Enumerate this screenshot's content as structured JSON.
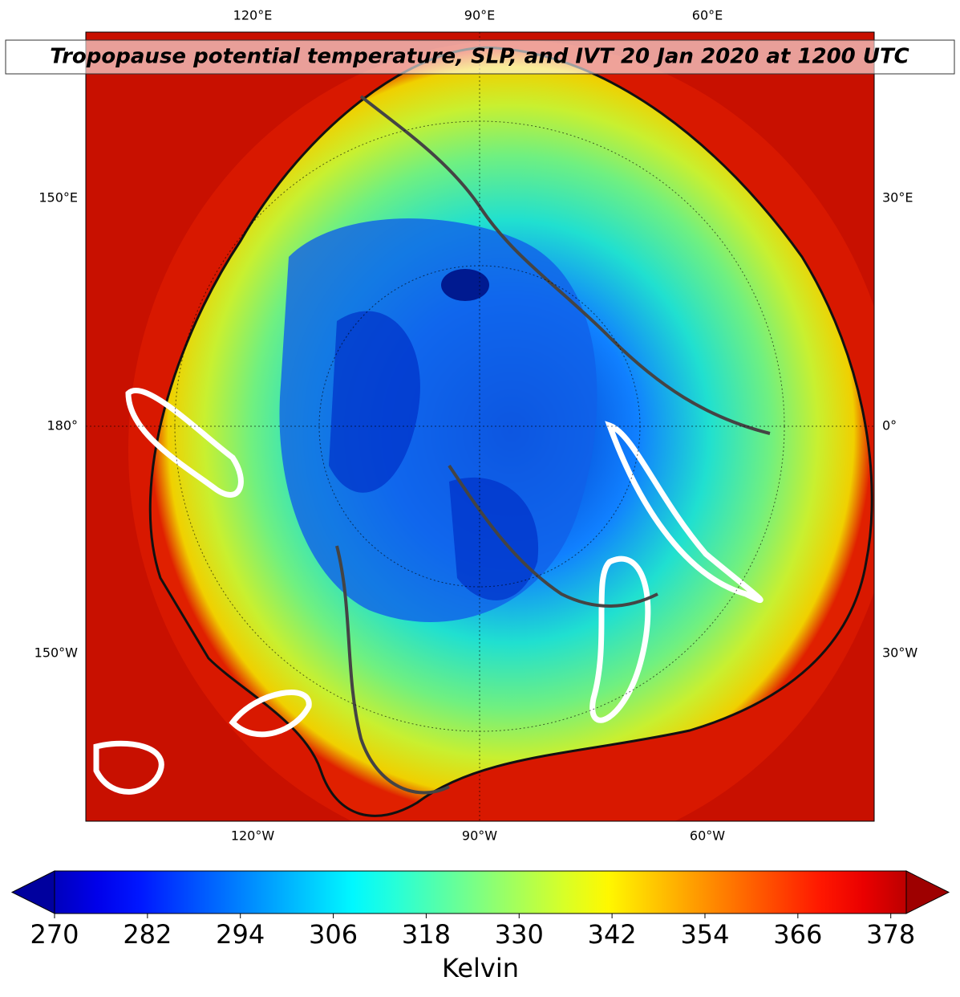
{
  "title": "Tropopause potential temperature, SLP, and IVT 20 Jan 2020 at 1200 UTC",
  "map": {
    "lon_labels_top": [
      "120°E",
      "90°E",
      "60°E"
    ],
    "lat_labels_left": [
      "150°E",
      "180°",
      "150°W"
    ],
    "lat_labels_right": [
      "30°E",
      "0°",
      "30°W"
    ],
    "lon_labels_bottom": [
      "120°W",
      "90°W",
      "60°W"
    ]
  },
  "colorbar": {
    "lim": [
      270,
      380
    ],
    "ticks": [
      270,
      282,
      294,
      306,
      318,
      330,
      342,
      354,
      366,
      378
    ],
    "label": "Kelvin"
  }
}
